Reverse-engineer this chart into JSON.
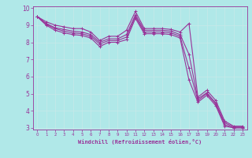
{
  "xlabel": "Windchill (Refroidissement éolien,°C)",
  "bg_color": "#b0e8e8",
  "line_color": "#993399",
  "grid_color": "#aadddd",
  "xmin": 0,
  "xmax": 23,
  "ymin": 3,
  "ymax": 10,
  "xticks": [
    0,
    1,
    2,
    3,
    4,
    5,
    6,
    7,
    8,
    9,
    10,
    11,
    12,
    13,
    14,
    15,
    16,
    17,
    18,
    19,
    20,
    21,
    22,
    23
  ],
  "yticks": [
    3,
    4,
    5,
    6,
    7,
    8,
    9,
    10
  ],
  "line1_x": [
    0,
    1,
    2,
    3,
    4,
    5,
    6,
    7,
    8,
    9,
    10,
    11,
    12,
    13,
    14,
    15,
    16,
    17,
    18,
    19,
    20,
    21,
    22,
    23
  ],
  "line1_y": [
    9.5,
    9.2,
    9.0,
    8.9,
    8.8,
    8.8,
    8.6,
    8.1,
    8.35,
    8.35,
    8.7,
    9.8,
    8.8,
    8.8,
    8.8,
    8.75,
    8.6,
    9.1,
    4.8,
    5.2,
    4.6,
    3.4,
    3.1,
    3.1
  ],
  "line2_x": [
    0,
    1,
    2,
    3,
    4,
    5,
    6,
    7,
    8,
    9,
    10,
    11,
    12,
    13,
    14,
    15,
    16,
    17,
    18,
    19,
    20,
    21,
    22,
    23
  ],
  "line2_y": [
    9.5,
    9.1,
    8.85,
    8.75,
    8.65,
    8.6,
    8.45,
    8.0,
    8.2,
    8.2,
    8.45,
    9.6,
    8.7,
    8.7,
    8.7,
    8.65,
    8.45,
    7.3,
    4.7,
    5.05,
    4.45,
    3.3,
    3.05,
    3.05
  ],
  "line3_x": [
    0,
    1,
    2,
    3,
    4,
    5,
    6,
    7,
    8,
    9,
    10,
    11,
    12,
    13,
    14,
    15,
    16,
    17,
    18,
    19,
    20,
    21,
    22,
    23
  ],
  "line3_y": [
    9.5,
    9.05,
    8.8,
    8.65,
    8.55,
    8.5,
    8.35,
    7.9,
    8.1,
    8.1,
    8.3,
    9.5,
    8.6,
    8.6,
    8.6,
    8.55,
    8.35,
    6.5,
    4.6,
    5.0,
    4.4,
    3.2,
    3.0,
    3.0
  ],
  "line4_x": [
    0,
    1,
    2,
    3,
    4,
    5,
    6,
    7,
    8,
    9,
    10,
    11,
    12,
    13,
    14,
    15,
    16,
    17,
    18,
    19,
    20,
    21,
    22,
    23
  ],
  "line4_y": [
    9.5,
    9.0,
    8.7,
    8.55,
    8.45,
    8.4,
    8.25,
    7.75,
    8.0,
    8.0,
    8.15,
    9.4,
    8.5,
    8.5,
    8.5,
    8.45,
    8.25,
    5.8,
    4.5,
    4.9,
    4.3,
    3.1,
    3.0,
    3.0
  ]
}
